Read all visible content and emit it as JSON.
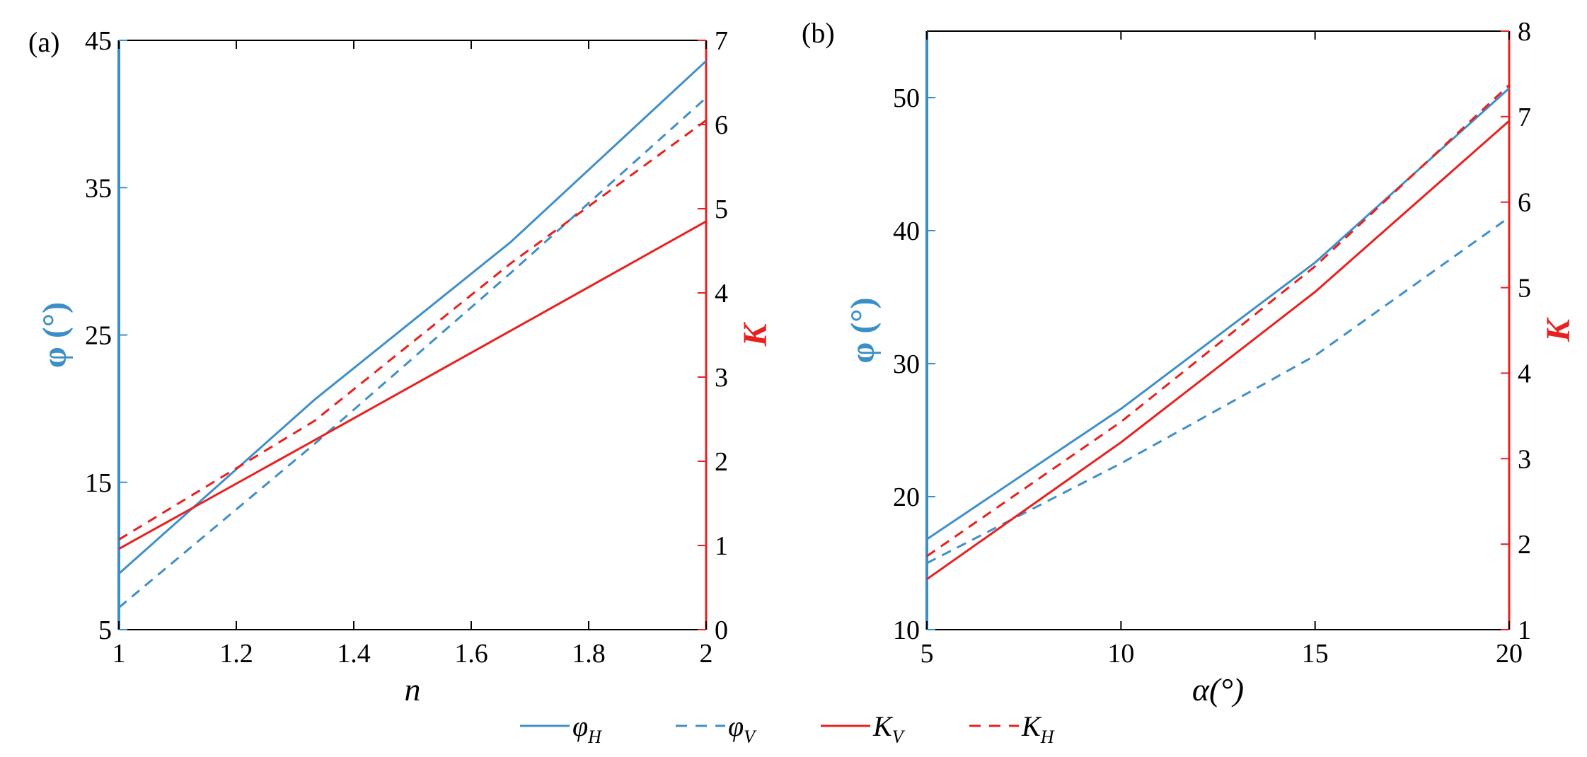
{
  "legend": [
    {
      "sym": "φ",
      "sub": "H",
      "series": "phi_H"
    },
    {
      "sym": "φ",
      "sub": "V",
      "series": "phi_V"
    },
    {
      "sym": "K",
      "sub": "V",
      "series": "K_V"
    },
    {
      "sym": "K",
      "sub": "H",
      "series": "K_H"
    }
  ],
  "styles": {
    "phi_H": {
      "color": "#3f8fca",
      "dash": ""
    },
    "phi_V": {
      "color": "#3f8fca",
      "dash": "14,10"
    },
    "K_V": {
      "color": "#e8211f",
      "dash": ""
    },
    "K_H": {
      "color": "#e8211f",
      "dash": "14,10"
    }
  },
  "colors": {
    "left_axis": "#3b8fc8",
    "right_axis": "#e8211f",
    "frame": "#000000"
  },
  "chart_data": [
    {
      "type": "line",
      "panel_label": "(a)",
      "xlabel": "n",
      "ylabel_left": "φ (°)",
      "ylabel_right": "K",
      "xlim": [
        1,
        2
      ],
      "ylim_left": [
        5,
        45
      ],
      "ylim_right": [
        0,
        7
      ],
      "xticks": [
        1,
        1.2,
        1.4,
        1.6,
        1.8,
        2
      ],
      "xtick_labels": [
        "1",
        "1.2",
        "1.4",
        "1.6",
        "1.8",
        "2"
      ],
      "yticks_left": [
        5,
        15,
        25,
        35,
        45
      ],
      "yticks_right": [
        0,
        1,
        2,
        3,
        4,
        5,
        6,
        7
      ],
      "series": [
        {
          "id": "phi_H",
          "axis": "left",
          "x": [
            1,
            1.333,
            1.667,
            2
          ],
          "y": [
            8.8,
            20.6,
            31.3,
            43.6
          ]
        },
        {
          "id": "phi_V",
          "axis": "left",
          "x": [
            1,
            1.333,
            1.667,
            2
          ],
          "y": [
            6.5,
            17.6,
            29.2,
            41.1
          ]
        },
        {
          "id": "K_V",
          "axis": "right",
          "x": [
            1,
            1.333,
            1.667,
            2
          ],
          "y": [
            0.96,
            2.25,
            3.55,
            4.85
          ]
        },
        {
          "id": "K_H",
          "axis": "right",
          "x": [
            1,
            1.333,
            1.667,
            2
          ],
          "y": [
            1.07,
            2.48,
            4.35,
            6.05
          ]
        }
      ]
    },
    {
      "type": "line",
      "panel_label": "(b)",
      "xlabel": "α(°)",
      "ylabel_left": "φ (°)",
      "ylabel_right": "K",
      "xlim": [
        5,
        20
      ],
      "ylim_left": [
        10,
        55
      ],
      "ylim_right": [
        1,
        8
      ],
      "xticks": [
        5,
        10,
        15,
        20
      ],
      "xtick_labels": [
        "5",
        "10",
        "15",
        "20"
      ],
      "yticks_left": [
        10,
        20,
        30,
        40,
        50
      ],
      "yticks_right": [
        1,
        2,
        3,
        4,
        5,
        6,
        7,
        8
      ],
      "series": [
        {
          "id": "phi_H",
          "axis": "left",
          "x": [
            5,
            10,
            15,
            20
          ],
          "y": [
            16.8,
            26.6,
            37.6,
            50.7
          ]
        },
        {
          "id": "phi_V",
          "axis": "left",
          "x": [
            5,
            10,
            15,
            20
          ],
          "y": [
            15.0,
            22.5,
            30.6,
            41.0
          ]
        },
        {
          "id": "K_V",
          "axis": "right",
          "x": [
            5,
            10,
            15,
            20
          ],
          "y": [
            1.59,
            3.19,
            4.95,
            6.95
          ]
        },
        {
          "id": "K_H",
          "axis": "right",
          "x": [
            5,
            10,
            15,
            20
          ],
          "y": [
            1.86,
            3.43,
            5.25,
            7.37
          ]
        }
      ]
    }
  ]
}
